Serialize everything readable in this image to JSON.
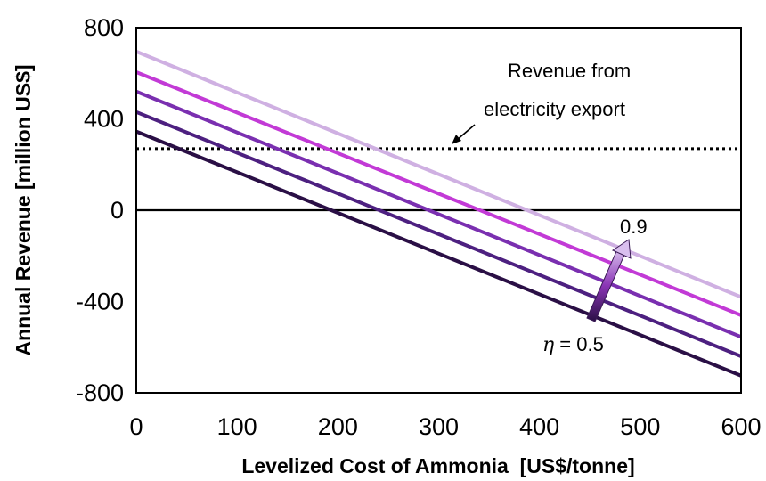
{
  "chart_data": {
    "type": "line",
    "xlabel": "Levelized Cost of Ammonia  [US$/tonne]",
    "ylabel": "Annual Revenue [million US$]",
    "xlim": [
      0,
      600
    ],
    "ylim": [
      -800,
      800
    ],
    "xticks": [
      "0",
      "100",
      "200",
      "300",
      "400",
      "500",
      "600"
    ],
    "yticks": [
      "800",
      "400",
      "0",
      "-400",
      "-800"
    ],
    "grid": false,
    "x": [
      0,
      600
    ],
    "series": [
      {
        "values": [
          345,
          -725
        ],
        "color": "#2a0f45"
      },
      {
        "values": [
          430,
          -640
        ],
        "color": "#4d2080"
      },
      {
        "values": [
          520,
          -555
        ],
        "color": "#7a2fb0"
      },
      {
        "values": [
          605,
          -460
        ],
        "color": "#c23ad6"
      },
      {
        "values": [
          695,
          -380
        ],
        "color": "#cfb0e2"
      }
    ],
    "reference_lines": [
      {
        "y": 0,
        "style": "solid",
        "color": "#000000"
      },
      {
        "y": 270,
        "style": "dotted",
        "color": "#000000"
      }
    ],
    "annotations": {
      "electricity_line1": "Revenue from",
      "electricity_line2": "electricity export",
      "eta_symbol": "η",
      "eta_low_rest": " = 0.5",
      "eta_high": "0.9"
    }
  }
}
